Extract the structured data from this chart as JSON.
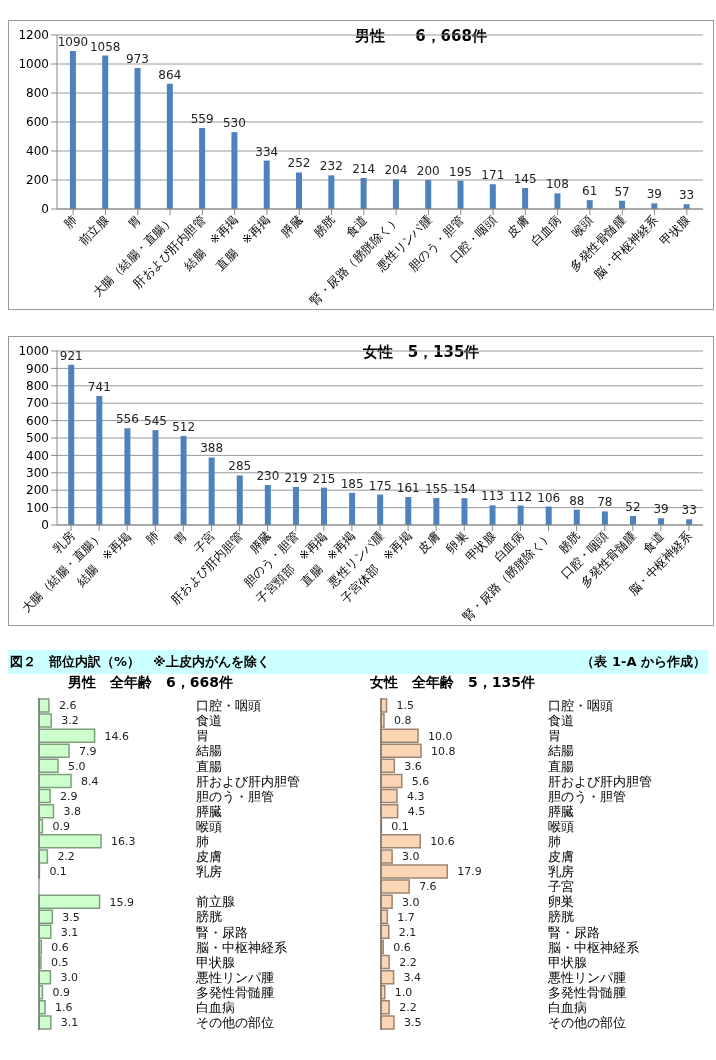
{
  "chart_data": [
    {
      "type": "bar",
      "title": "男性　　6，668件",
      "categories": [
        "肺",
        "前立腺",
        "胃",
        "大腸（結腸・直腸）",
        "肝および肝内胆管",
        "結腸　※再掲",
        "直腸　※再掲",
        "膵臓",
        "膀胱",
        "食道",
        "腎・尿路（膀胱除く）",
        "悪性リンパ腫",
        "胆のう・胆管",
        "口腔・咽頭",
        "皮膚",
        "白血病",
        "喉頭",
        "多発性骨髄腫",
        "脳・中枢神経系",
        "甲状腺"
      ],
      "values": [
        1090,
        1058,
        973,
        864,
        559,
        530,
        334,
        252,
        232,
        214,
        204,
        200,
        195,
        171,
        145,
        108,
        61,
        57,
        39,
        33
      ],
      "color": "#4f81bd",
      "ylim": [
        0,
        1200
      ],
      "yticks": [
        0,
        200,
        400,
        600,
        800,
        1000,
        1200
      ],
      "grid": "y",
      "data_labels": true
    },
    {
      "type": "bar",
      "title": "女性　5，135件",
      "categories": [
        "乳房",
        "大腸（結腸・直腸）",
        "結腸　※再掲",
        "肺",
        "胃",
        "子宮",
        "肝および肝内胆管",
        "膵臓",
        "胆のう・胆管",
        "子宮頸部　※再掲",
        "直腸　※再掲",
        "悪性リンパ腫",
        "子宮体部　※再掲",
        "皮膚",
        "卵巣",
        "甲状腺",
        "白血病",
        "腎・尿路（膀胱除く）",
        "膀胱",
        "口腔・咽頭",
        "多発性骨髄腫",
        "食道",
        "脳・中枢神経系"
      ],
      "values": [
        921,
        741,
        556,
        545,
        512,
        388,
        285,
        230,
        219,
        215,
        185,
        175,
        161,
        155,
        154,
        113,
        112,
        106,
        88,
        78,
        52,
        39,
        33
      ],
      "color": "#4f81bd",
      "ylim": [
        0,
        1000
      ],
      "yticks": [
        0,
        100,
        200,
        300,
        400,
        500,
        600,
        700,
        800,
        900,
        1000
      ],
      "grid": "y",
      "data_labels": true
    },
    {
      "type": "bar",
      "orientation": "horizontal",
      "title": "図２　部位内訳（%）　※上皮内がんを除く",
      "subtitle": "男性　全年齢　6，668件",
      "annotations": [
        "（表 1-A から作成）"
      ],
      "categories": [
        "口腔・咽頭",
        "食道",
        "胃",
        "結腸",
        "直腸",
        "肝および肝内胆管",
        "胆のう・胆管",
        "膵臓",
        "喉頭",
        "肺",
        "皮膚",
        "乳房",
        null,
        "前立腺",
        "膀胱",
        "腎・尿路",
        "脳・中枢神経系",
        "甲状腺",
        "悪性リンパ腫",
        "多発性骨髄腫",
        "白血病",
        "その他の部位"
      ],
      "values": [
        2.6,
        3.2,
        14.6,
        7.9,
        5.0,
        8.4,
        2.9,
        3.8,
        0.9,
        16.3,
        2.2,
        0.1,
        null,
        15.9,
        3.5,
        3.1,
        0.6,
        0.5,
        3.0,
        0.9,
        1.6,
        3.1
      ],
      "value_labels": [
        "2.6",
        "3.2",
        "14.6",
        "7.9",
        "5.0",
        "8.4",
        "2.9",
        "3.8",
        "0.9",
        "16.3",
        "2.2",
        "0.1",
        null,
        "15.9",
        "3.5",
        "3.1",
        "0.6",
        "0.5",
        "3.0",
        "0.9",
        "1.6",
        "3.1"
      ],
      "color": "#ccffcc",
      "tick_labels": "y"
    },
    {
      "type": "bar",
      "orientation": "horizontal",
      "subtitle": "女性　全年齢　5，135件",
      "categories": [
        "口腔・咽頭",
        "食道",
        "胃",
        "結腸",
        "直腸",
        "肝および肝内胆管",
        "胆のう・胆管",
        "膵臓",
        "喉頭",
        "肺",
        "皮膚",
        "乳房",
        "子宮",
        "卵巣",
        "膀胱",
        "腎・尿路",
        "脳・中枢神経系",
        "甲状腺",
        "悪性リンパ腫",
        "多発性骨髄腫",
        "白血病",
        "その他の部位"
      ],
      "values": [
        1.5,
        0.8,
        10.0,
        10.8,
        3.6,
        5.6,
        4.3,
        4.5,
        0.1,
        10.6,
        3.0,
        17.9,
        7.6,
        3.0,
        1.7,
        2.1,
        0.6,
        2.2,
        3.4,
        1.0,
        2.2,
        3.5
      ],
      "value_labels": [
        "1.5",
        "0.8",
        "10.0",
        "10.8",
        "3.6",
        "5.6",
        "4.3",
        "4.5",
        "0.1",
        "10.6",
        "3.0",
        "17.9",
        "7.6",
        "3.0",
        "1.7",
        "2.1",
        "0.6",
        "2.2",
        "3.4",
        "1.0",
        "2.2",
        "3.5"
      ],
      "color": "#fcd5b4",
      "tick_labels": "y"
    }
  ]
}
